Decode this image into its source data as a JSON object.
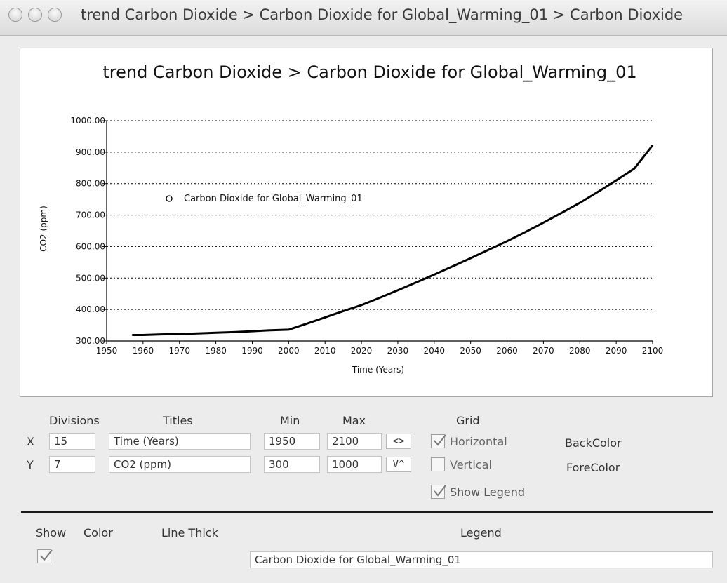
{
  "window": {
    "title": "trend Carbon Dioxide > Carbon Dioxide for Global_Warming_01 > Carbon Dioxide"
  },
  "chart_data": {
    "type": "line",
    "title": "trend Carbon Dioxide > Carbon Dioxide for Global_Warming_01",
    "xlabel": "Time (Years)",
    "ylabel": "CO2 (ppm)",
    "xlim": [
      1950,
      2100
    ],
    "ylim": [
      300,
      1000
    ],
    "x_ticks": [
      "1950",
      "1960",
      "1970",
      "1980",
      "1990",
      "2000",
      "2010",
      "2020",
      "2030",
      "2040",
      "2050",
      "2060",
      "2070",
      "2080",
      "2090",
      "2100"
    ],
    "y_ticks": [
      "300.00",
      "400.00",
      "500.00",
      "600.00",
      "700.00",
      "800.00",
      "900.00",
      "1000.00"
    ],
    "grid": {
      "horizontal": true,
      "vertical": false
    },
    "legend_placement": "upper-left",
    "series": [
      {
        "name": "Carbon Dioxide for Global_Warming_01",
        "color": "#000000",
        "x": [
          1957,
          1960,
          1965,
          1970,
          1975,
          1980,
          1985,
          1990,
          1995,
          2000,
          2005,
          2010,
          2015,
          2020,
          2025,
          2030,
          2035,
          2040,
          2045,
          2050,
          2055,
          2060,
          2065,
          2070,
          2075,
          2080,
          2085,
          2090,
          2095,
          2100
        ],
        "y": [
          319,
          319,
          321,
          322,
          324,
          326,
          328,
          331,
          334,
          336,
          355,
          375,
          395,
          414,
          437,
          461,
          486,
          511,
          537,
          563,
          590,
          617,
          646,
          676,
          707,
          739,
          774,
          810,
          848,
          922
        ]
      }
    ]
  },
  "controls": {
    "headers": {
      "divisions": "Divisions",
      "titles": "Titles",
      "min": "Min",
      "max": "Max",
      "grid": "Grid"
    },
    "x": {
      "label": "X",
      "divisions": "15",
      "title": "Time (Years)",
      "min": "1950",
      "max": "2100",
      "swap_button": "<>"
    },
    "y": {
      "label": "Y",
      "divisions": "7",
      "title": "CO2 (ppm)",
      "min": "300",
      "max": "1000",
      "swap_button": "V^"
    },
    "grid_horizontal": {
      "label": "Horizontal",
      "checked": true
    },
    "grid_vertical": {
      "label": "Vertical",
      "checked": false
    },
    "show_legend": {
      "label": "Show Legend",
      "checked": true
    },
    "backcolor_label": "BackColor",
    "forecolor_label": "ForeColor"
  },
  "series_table": {
    "headers": {
      "show": "Show",
      "color": "Color",
      "line_thick": "Line Thick",
      "legend": "Legend"
    },
    "rows": [
      {
        "show": true,
        "legend": "Carbon Dioxide for Global_Warming_01"
      }
    ]
  }
}
